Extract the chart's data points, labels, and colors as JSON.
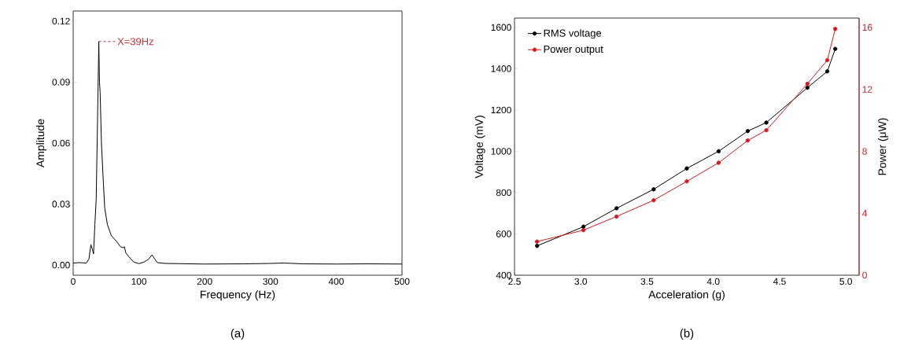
{
  "chart_data": [
    {
      "type": "line",
      "xlabel": "Frequency (Hz)",
      "ylabel": "Amplitude",
      "xlim": [
        0,
        500
      ],
      "ylim": [
        -0.005,
        0.125
      ],
      "xticks": [
        0,
        100,
        200,
        300,
        400,
        500
      ],
      "yticks": [
        {
          "value": 0,
          "label": "0.00"
        },
        {
          "value": 0.03,
          "label": "0.03"
        },
        {
          "value": 0.06,
          "label": "0.06"
        },
        {
          "value": 0.09,
          "label": "0.09"
        },
        {
          "value": 0.12,
          "label": "0.12"
        }
      ],
      "series": [
        {
          "color": "#000000",
          "x": [
            0,
            10,
            20,
            24,
            27,
            29,
            31,
            33,
            35,
            37,
            39,
            40,
            41,
            43,
            46,
            48,
            52,
            58,
            65,
            72,
            76,
            78,
            80,
            85,
            92,
            100,
            108,
            115,
            120,
            124,
            128,
            140,
            200,
            260,
            300,
            320,
            350,
            400,
            450,
            500
          ],
          "values": [
            0.001,
            0.0012,
            0.001,
            0.003,
            0.01,
            0.008,
            0.0055,
            0.02,
            0.032,
            0.07,
            0.11,
            0.09,
            0.085,
            0.06,
            0.04,
            0.028,
            0.02,
            0.0145,
            0.012,
            0.009,
            0.0085,
            0.009,
            0.006,
            0.004,
            0.0015,
            0.0007,
            0.0015,
            0.003,
            0.005,
            0.003,
            0.0012,
            0.0008,
            0.0005,
            0.0006,
            0.0008,
            0.001,
            0.0006,
            0.0005,
            0.0006,
            0.0005
          ]
        }
      ],
      "annotations": [
        {
          "text": "X=39Hz",
          "x": 39,
          "y": 0.11
        },
        "(a)"
      ]
    },
    {
      "type": "line",
      "xlabel": "Acceleration (g)",
      "ylabel": "Voltage (mV)",
      "y2label": "Power (μW)",
      "xlim": [
        2.5,
        5.1
      ],
      "ylim": [
        400,
        1645
      ],
      "y2lim": [
        0,
        16.6
      ],
      "xticks": [
        2.5,
        {
          "value": 3,
          "label": "3.0"
        },
        3.5,
        {
          "value": 4,
          "label": "4.0"
        },
        4.5,
        {
          "value": 5,
          "label": "5.0"
        }
      ],
      "yticks": [
        400,
        600,
        800,
        1000,
        1200,
        1400,
        1600
      ],
      "y2ticks": [
        0,
        4,
        8,
        12,
        16
      ],
      "x": [
        2.67,
        3.02,
        3.27,
        3.55,
        3.8,
        4.04,
        4.26,
        4.4,
        4.71,
        4.86,
        4.92
      ],
      "series": [
        {
          "name": "RMS voltage",
          "color": "#000000",
          "values": [
            542,
            635,
            724,
            816,
            917,
            1000,
            1098,
            1139,
            1308,
            1387,
            1496
          ]
        },
        {
          "name": "Power output",
          "color": "#d9161c",
          "axis": "y2",
          "values": [
            2.17,
            2.91,
            3.79,
            4.84,
            6.06,
            7.26,
            8.7,
            9.36,
            12.36,
            13.88,
            15.9
          ]
        }
      ],
      "marker": "circle",
      "line_style": "solid",
      "legend": "top left",
      "annotations": [
        "(b)"
      ]
    }
  ]
}
